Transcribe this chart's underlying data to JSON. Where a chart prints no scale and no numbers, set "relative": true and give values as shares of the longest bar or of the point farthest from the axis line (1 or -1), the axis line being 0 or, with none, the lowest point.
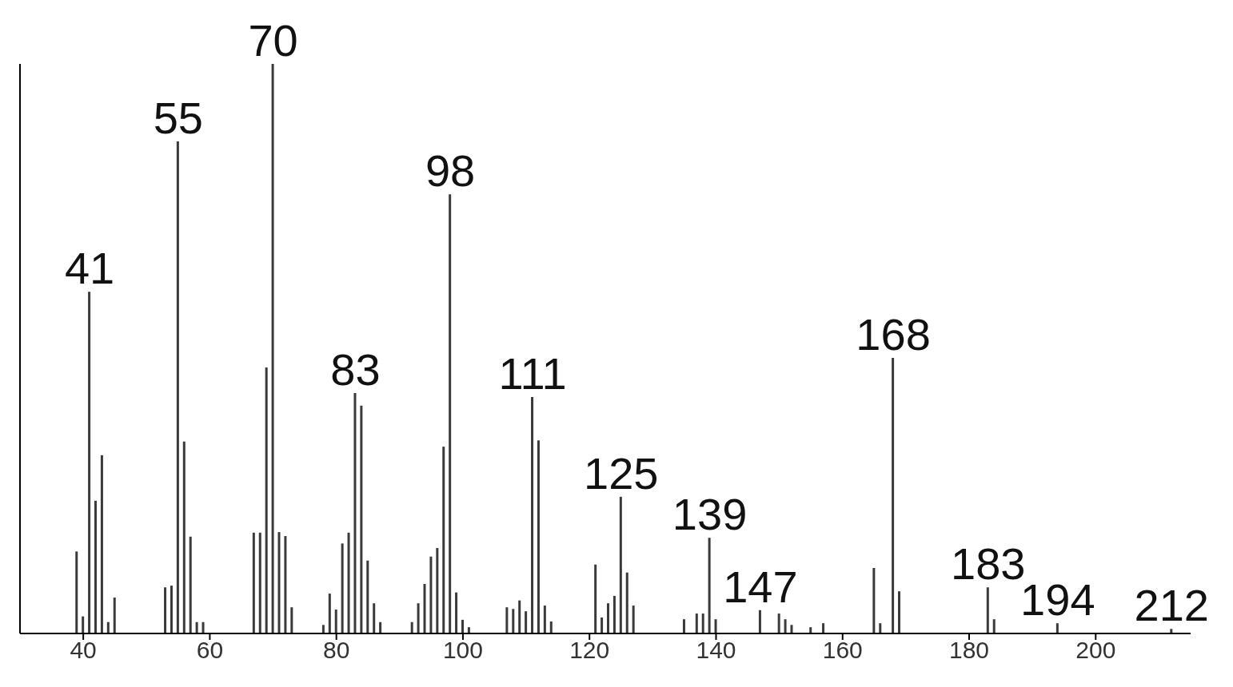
{
  "chart_data": {
    "type": "bar",
    "relative": true,
    "color": "#3a3a3a",
    "x": [
      39,
      40,
      41,
      42,
      43,
      44,
      45,
      53,
      54,
      55,
      56,
      57,
      58,
      59,
      67,
      68,
      69,
      70,
      71,
      72,
      73,
      78,
      79,
      80,
      81,
      82,
      83,
      84,
      85,
      86,
      87,
      92,
      93,
      94,
      95,
      96,
      97,
      98,
      99,
      100,
      101,
      107,
      108,
      109,
      110,
      111,
      112,
      113,
      114,
      121,
      122,
      123,
      124,
      125,
      126,
      127,
      135,
      137,
      138,
      139,
      140,
      147,
      150,
      151,
      152,
      155,
      157,
      165,
      166,
      168,
      169,
      183,
      184,
      194,
      212
    ],
    "values": [
      0.144,
      0.03,
      0.6,
      0.233,
      0.313,
      0.02,
      0.063,
      0.081,
      0.084,
      0.864,
      0.337,
      0.17,
      0.02,
      0.02,
      0.177,
      0.177,
      0.467,
      1,
      0.178,
      0.171,
      0.046,
      0.015,
      0.07,
      0.042,
      0.158,
      0.177,
      0.422,
      0.4,
      0.128,
      0.053,
      0.02,
      0.02,
      0.053,
      0.087,
      0.135,
      0.15,
      0.328,
      0.771,
      0.072,
      0.024,
      0.011,
      0.046,
      0.043,
      0.058,
      0.039,
      0.415,
      0.339,
      0.049,
      0.021,
      0.121,
      0.028,
      0.053,
      0.066,
      0.24,
      0.107,
      0.049,
      0.025,
      0.035,
      0.035,
      0.168,
      0.025,
      0.041,
      0.035,
      0.025,
      0.015,
      0.011,
      0.018,
      0.115,
      0.018,
      0.484,
      0.074,
      0.081,
      0.025,
      0.018,
      0.008
    ],
    "xlim": [
      30,
      215
    ],
    "xticks": [
      40,
      60,
      80,
      100,
      120,
      140,
      160,
      180,
      200
    ],
    "annotations": [
      {
        "text": "41",
        "x": 41,
        "y": 0.6
      },
      {
        "text": "55",
        "x": 55,
        "y": 0.864
      },
      {
        "text": "70",
        "x": 70,
        "y": 1
      },
      {
        "text": "83",
        "x": 83,
        "y": 0.422
      },
      {
        "text": "98",
        "x": 98,
        "y": 0.771
      },
      {
        "text": "111",
        "x": 111,
        "y": 0.415
      },
      {
        "text": "125",
        "x": 125,
        "y": 0.24
      },
      {
        "text": "139",
        "x": 139,
        "y": 0.168
      },
      {
        "text": "147",
        "x": 147,
        "y": 0.041
      },
      {
        "text": "168",
        "x": 168,
        "y": 0.484
      },
      {
        "text": "183",
        "x": 183,
        "y": 0.081
      },
      {
        "text": "194",
        "x": 194,
        "y": 0.018
      },
      {
        "text": "212",
        "x": 212,
        "y": 0.008
      }
    ]
  }
}
